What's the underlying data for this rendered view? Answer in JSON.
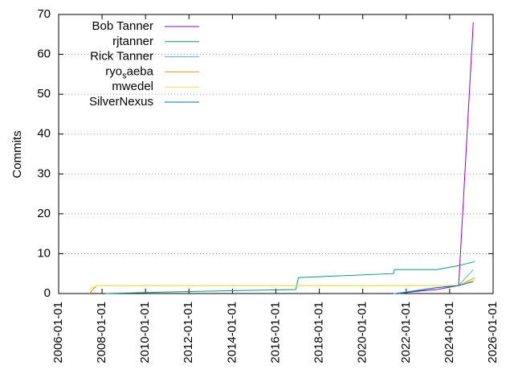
{
  "chart_data": {
    "type": "line",
    "ylabel": "Commits",
    "xlim": [
      "2006-01-01",
      "2026-01-01"
    ],
    "xticks": [
      "2006-01-01",
      "2008-01-01",
      "2010-01-01",
      "2012-01-01",
      "2014-01-01",
      "2016-01-01",
      "2018-01-01",
      "2020-01-01",
      "2022-01-01",
      "2024-01-01",
      "2026-01-01"
    ],
    "ylim": [
      0,
      70
    ],
    "yticks": [
      0,
      10,
      20,
      30,
      40,
      50,
      60,
      70
    ],
    "grid": true,
    "legend": "top-left",
    "series": [
      {
        "name": "Bob Tanner",
        "color": "#9400d3",
        "x": [
          "2021-09-01",
          "2022-06-01",
          "2023-06-01",
          "2024-06-01",
          "2025-02-01"
        ],
        "values": [
          0,
          0.5,
          1,
          2,
          68
        ]
      },
      {
        "name": "rjtanner",
        "color": "#009e73",
        "x": [
          "2008-03-01",
          "2012-01-01",
          "2016-12-01",
          "2017-01-15",
          "2021-06-01",
          "2021-06-15",
          "2023-06-01",
          "2024-06-01",
          "2025-03-01"
        ],
        "values": [
          0,
          0.5,
          1,
          4,
          5,
          6,
          6,
          7,
          8
        ]
      },
      {
        "name": "Rick Tanner",
        "color": "#56b4e9",
        "x": [
          "2021-06-01",
          "2023-06-01",
          "2024-06-01",
          "2025-02-01"
        ],
        "values": [
          0,
          1.5,
          2,
          6
        ]
      },
      {
        "name": "ryo_saeba",
        "color": "#e69f00",
        "x": [
          "2007-06-01",
          "2007-10-01",
          "2024-06-01",
          "2025-03-01"
        ],
        "values": [
          0,
          2,
          2,
          4
        ]
      },
      {
        "name": "mwedel",
        "color": "#f0e442",
        "x": [
          "2007-06-01",
          "2007-10-01",
          "2021-06-01",
          "2024-06-01",
          "2025-03-01"
        ],
        "values": [
          1,
          2,
          2,
          2,
          3.5
        ]
      },
      {
        "name": "SilverNexus",
        "color": "#0072b2",
        "x": [
          "2021-09-01",
          "2023-06-01",
          "2024-06-01",
          "2025-02-01"
        ],
        "values": [
          0,
          1.5,
          2,
          3
        ]
      }
    ]
  }
}
